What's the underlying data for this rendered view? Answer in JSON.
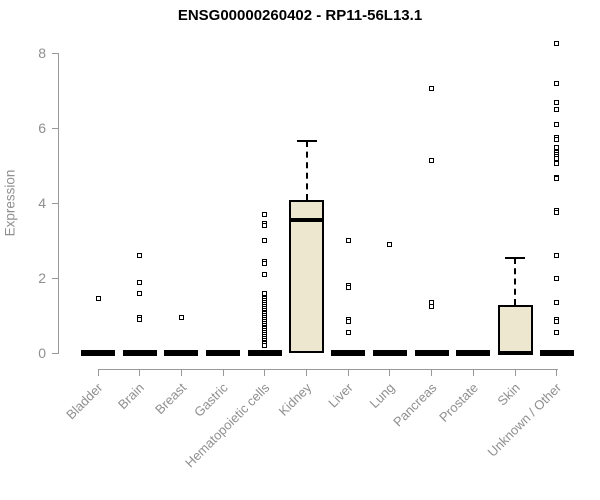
{
  "title": "ENSG00000260402 - RP11-56L13.1",
  "chart_data": {
    "type": "boxplot",
    "title": "ENSG00000260402 - RP11-56L13.1",
    "xlabel": "",
    "ylabel": "Expression",
    "yticks": [
      0,
      2,
      4,
      6,
      8
    ],
    "ylim": [
      0,
      8.5
    ],
    "grid": false,
    "legend": "none",
    "categories": [
      "Bladder",
      "Brain",
      "Breast",
      "Gastric",
      "Hematopoietic cells",
      "Kidney",
      "Liver",
      "Lung",
      "Pancreas",
      "Prostate",
      "Skin",
      "Unknown / Other"
    ],
    "series": [
      {
        "category": "Bladder",
        "box": {
          "q1": 0,
          "median": 0,
          "q3": 0,
          "whisker_high": 0
        },
        "outliers": [
          1.45
        ]
      },
      {
        "category": "Brain",
        "box": {
          "q1": 0,
          "median": 0,
          "q3": 0,
          "whisker_high": 0
        },
        "outliers": [
          2.6,
          1.9,
          1.6,
          0.95,
          0.9
        ]
      },
      {
        "category": "Breast",
        "box": {
          "q1": 0,
          "median": 0,
          "q3": 0,
          "whisker_high": 0
        },
        "outliers": [
          0.95
        ]
      },
      {
        "category": "Gastric",
        "box": {
          "q1": 0,
          "median": 0,
          "q3": 0,
          "whisker_high": 0
        },
        "outliers": []
      },
      {
        "category": "Hematopoietic cells",
        "box": {
          "q1": 0,
          "median": 0,
          "q3": 0,
          "whisker_high": 0
        },
        "outliers": [
          3.7,
          3.45,
          3.4,
          3.0,
          2.45,
          2.4,
          2.1,
          1.6,
          1.45,
          1.4,
          1.35,
          1.3,
          1.25,
          1.2,
          1.15,
          1.1,
          1.05,
          1.0,
          0.95,
          0.9,
          0.85,
          0.8,
          0.75,
          0.7,
          0.65,
          0.6,
          0.55,
          0.5,
          0.45,
          0.4,
          0.35,
          0.3,
          0.25,
          0.2
        ]
      },
      {
        "category": "Kidney",
        "box": {
          "q1": 0,
          "median": 3.55,
          "q3": 4.1,
          "whisker_high": 5.65
        },
        "outliers": []
      },
      {
        "category": "Liver",
        "box": {
          "q1": 0,
          "median": 0,
          "q3": 0,
          "whisker_high": 0
        },
        "outliers": [
          3.0,
          1.8,
          1.75,
          0.9,
          0.85,
          0.55
        ]
      },
      {
        "category": "Lung",
        "box": {
          "q1": 0,
          "median": 0,
          "q3": 0,
          "whisker_high": 0
        },
        "outliers": [
          2.9
        ]
      },
      {
        "category": "Pancreas",
        "box": {
          "q1": 0,
          "median": 0,
          "q3": 0,
          "whisker_high": 0
        },
        "outliers": [
          7.05,
          5.15,
          1.35,
          1.25
        ]
      },
      {
        "category": "Prostate",
        "box": {
          "q1": 0,
          "median": 0,
          "q3": 0,
          "whisker_high": 0
        },
        "outliers": []
      },
      {
        "category": "Skin",
        "box": {
          "q1": 0,
          "median": 0,
          "q3": 1.3,
          "whisker_high": 2.55
        },
        "outliers": []
      },
      {
        "category": "Unknown / Other",
        "box": {
          "q1": 0,
          "median": 0,
          "q3": 0,
          "whisker_high": 0
        },
        "outliers": [
          8.25,
          7.2,
          6.7,
          6.5,
          6.1,
          5.75,
          5.7,
          5.5,
          5.35,
          5.3,
          5.25,
          5.2,
          5.1,
          5.05,
          4.7,
          4.65,
          3.8,
          3.75,
          2.6,
          2.0,
          1.35,
          0.9,
          0.85,
          0.55
        ]
      }
    ],
    "colors": {
      "box_fill": "#EDE7D0",
      "box_border": "#000000",
      "median": "#000000",
      "outlier_border": "#000000",
      "outlier_fill": "#FFFFFF",
      "axis": "#999999",
      "tick_label": "#8F8F8F",
      "title": "#000000",
      "background": "#FFFFFF"
    }
  }
}
